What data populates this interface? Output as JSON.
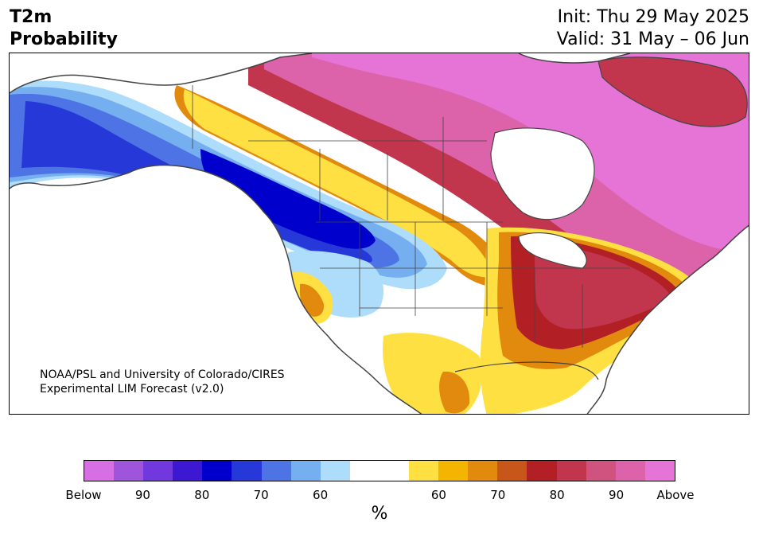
{
  "title": {
    "line1": "T2m",
    "line2": "Probability",
    "init": "Init: Thu 29 May 2025",
    "valid": "Valid: 31 May – 06 Jun"
  },
  "credit": {
    "line1": "NOAA/PSL and University of Colorado/CIRES",
    "line2": "Experimental LIM Forecast (v2.0)"
  },
  "colorbar": {
    "colors": [
      "#d66fe3",
      "#9e55dc",
      "#7138dd",
      "#3c18d3",
      "#0000cc",
      "#2639d8",
      "#4d73e4",
      "#76afef",
      "#aedcfb",
      "#ffffff",
      "#ffffff",
      "#ffe043",
      "#f3b500",
      "#e18a0e",
      "#c8561a",
      "#b22026",
      "#c2364d",
      "#d0527f",
      "#dc62aa",
      "#e673d6"
    ],
    "ticks": [
      "Below",
      "90",
      "80",
      "70",
      "60",
      "60",
      "70",
      "80",
      "90",
      "Above"
    ],
    "unit": "%"
  },
  "map": {
    "region": "North America",
    "colors": {
      "above_strong": "#e673d6",
      "above_high": "#dc62aa",
      "above_mid": "#c2364d",
      "above_red": "#b22026",
      "above_orange": "#c8561a",
      "above_amber": "#e18a0e",
      "above_gold": "#f3b500",
      "above_yellow": "#ffe043",
      "below_light": "#aedcfb",
      "below_sky": "#76afef",
      "below_blue": "#4d73e4",
      "below_royal": "#2639d8",
      "below_deep": "#0000cc",
      "below_indigo": "#3c18d3",
      "border": "#444444"
    }
  }
}
